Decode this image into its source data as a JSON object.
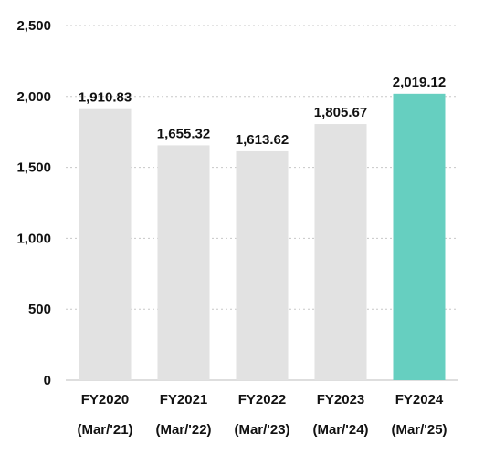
{
  "chart_data": {
    "type": "bar",
    "title": "",
    "xlabel": "",
    "ylabel": "",
    "categories": [
      {
        "year": "FY2020",
        "period": "(Mar/'21)"
      },
      {
        "year": "FY2021",
        "period": "(Mar/'22)"
      },
      {
        "year": "FY2022",
        "period": "(Mar/'23)"
      },
      {
        "year": "FY2023",
        "period": "(Mar/'24)"
      },
      {
        "year": "FY2024",
        "period": "(Mar/'25)"
      }
    ],
    "values": [
      1910.83,
      1655.32,
      1613.62,
      1805.67,
      2019.12
    ],
    "value_labels": [
      "1,910.83",
      "1,655.32",
      "1,613.62",
      "1,805.67",
      "2,019.12"
    ],
    "ylim": [
      0,
      2500
    ],
    "y_ticks": [
      0,
      500,
      1000,
      1500,
      2000,
      2500
    ],
    "y_tick_labels": [
      "0",
      "500",
      "1,000",
      "1,500",
      "2,000",
      "2,500"
    ],
    "grid": "horizontal-dotted",
    "legend": "none",
    "colors": {
      "bar": "#e2e2e2",
      "highlight": "#66cfc0",
      "highlight_index": 4
    }
  }
}
